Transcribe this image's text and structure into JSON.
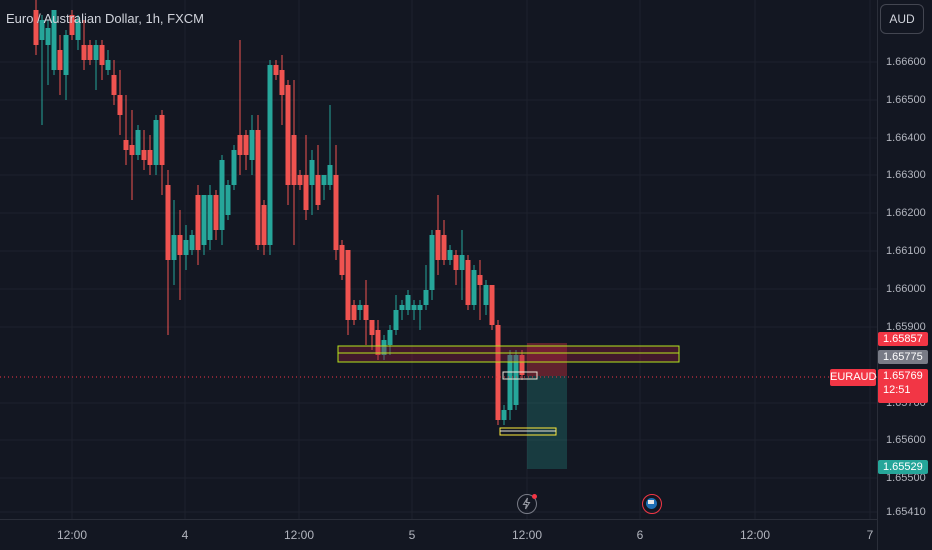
{
  "header": {
    "title": "Euro / Australian Dollar, 1h, FXCM"
  },
  "currency_button": "AUD",
  "price_axis": [
    "1.66600",
    "1.66500",
    "1.66400",
    "1.66300",
    "1.66200",
    "1.66100",
    "1.66000",
    "1.65900",
    "1.65700",
    "1.65600",
    "1.65500",
    "1.65410"
  ],
  "tags": {
    "target": "1.65857",
    "mid": "1.65775",
    "last": "1.65769",
    "countdown": "12:51",
    "stop": "1.65529",
    "symbol": "EURAUD"
  },
  "time_axis": [
    "12:00",
    "4",
    "12:00",
    "5",
    "12:00",
    "6",
    "12:00",
    "7"
  ],
  "colors": {
    "up": "#26a69a",
    "down": "#ef5350",
    "bg": "#131722",
    "zone": "#ffeb3b",
    "last_price": "#f23645"
  },
  "icons": [
    "lightning-icon",
    "flag-icon"
  ]
}
